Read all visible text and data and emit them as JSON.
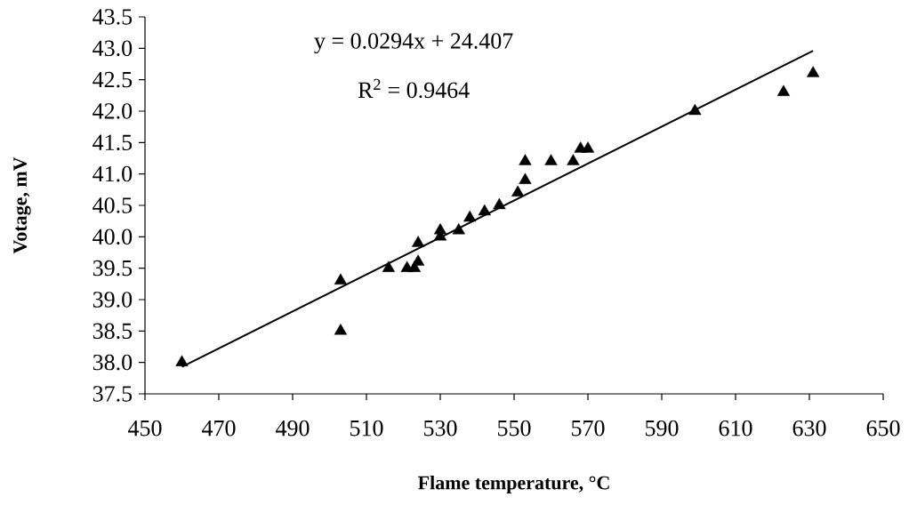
{
  "chart_data": {
    "type": "scatter",
    "xlabel": "Flame temperature,  °C",
    "ylabel": "Votage, mV",
    "xlim": [
      450,
      650
    ],
    "xticks": [
      450,
      470,
      490,
      510,
      530,
      550,
      570,
      590,
      610,
      630,
      650
    ],
    "ylim": [
      37.5,
      43.5
    ],
    "yticks": [
      {
        "value": 37.5,
        "label": "37.5"
      },
      {
        "value": 38,
        "label": "38.0"
      },
      {
        "value": 38.5,
        "label": "38.5"
      },
      {
        "value": 39,
        "label": "39.0"
      },
      {
        "value": 39.5,
        "label": "39.5"
      },
      {
        "value": 40,
        "label": "40.0"
      },
      {
        "value": 40.5,
        "label": "40.5"
      },
      {
        "value": 41,
        "label": "41.0"
      },
      {
        "value": 41.5,
        "label": "41.5"
      },
      {
        "value": 42,
        "label": "42.0"
      },
      {
        "value": 42.5,
        "label": "42.5"
      },
      {
        "value": 43,
        "label": "43.0"
      },
      {
        "value": 43.5,
        "label": "43.5"
      }
    ],
    "annotations": [
      "y = 0.0294x + 24.407",
      "R$^{2}$ = 0.9464"
    ],
    "grid": false,
    "legend": false,
    "series": [
      {
        "marker": "triangle",
        "color": "#000000",
        "x": [
          460,
          503,
          503,
          516,
          521,
          523,
          524,
          524,
          530,
          530,
          535,
          538,
          542,
          546,
          551,
          553,
          553,
          560,
          566,
          568,
          570,
          599,
          623,
          631
        ],
        "values": [
          38.0,
          39.3,
          38.5,
          39.5,
          39.5,
          39.5,
          39.6,
          39.9,
          40.0,
          40.1,
          40.1,
          40.3,
          40.4,
          40.5,
          40.7,
          40.9,
          41.2,
          41.2,
          41.2,
          41.4,
          41.4,
          42.0,
          42.3,
          42.6
        ]
      },
      {
        "type": "line",
        "marker": "none",
        "line_style": "solid",
        "color": "#000000",
        "x": [
          460,
          631
        ],
        "values": [
          37.93,
          42.96
        ]
      }
    ]
  }
}
